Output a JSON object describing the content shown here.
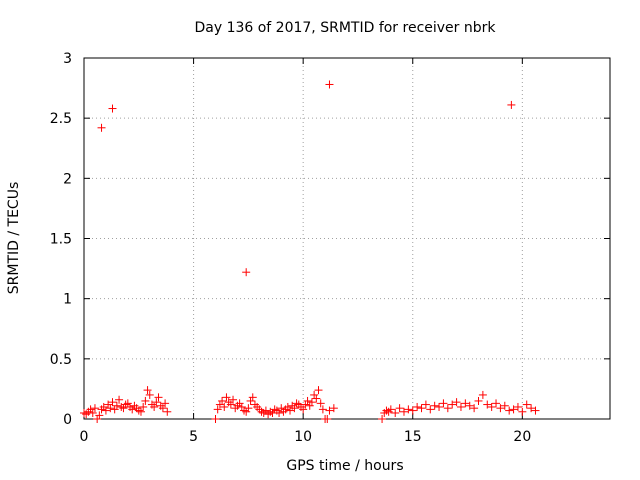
{
  "chart_data": {
    "type": "scatter",
    "title": "Day 136 of 2017, SRMTID for receiver nbrk",
    "xlabel": "GPS time / hours",
    "ylabel": "SRMTID / TECUs",
    "xlim": [
      0,
      24
    ],
    "ylim": [
      0,
      3
    ],
    "xticks": [
      0,
      5,
      10,
      15,
      20
    ],
    "xtick_labels": [
      "0",
      "5",
      "10",
      "15",
      "20"
    ],
    "yticks": [
      0,
      0.5,
      1,
      1.5,
      2,
      2.5,
      3
    ],
    "ytick_labels": [
      "0",
      "0.5",
      "1",
      "1.5",
      "2",
      "2.5",
      "3"
    ],
    "grid": true,
    "marker": "+",
    "color": "#ff0000",
    "series": [
      {
        "name": "SRMTID",
        "x": [
          0.0,
          0.1,
          0.2,
          0.3,
          0.4,
          0.5,
          0.6,
          0.7,
          0.8,
          0.9,
          1.0,
          1.1,
          1.2,
          1.3,
          1.4,
          1.5,
          1.6,
          1.7,
          1.8,
          1.9,
          2.0,
          2.1,
          2.2,
          2.3,
          2.4,
          2.5,
          2.6,
          2.7,
          2.8,
          2.9,
          3.0,
          3.1,
          3.2,
          3.3,
          3.4,
          3.5,
          3.6,
          3.7,
          3.8,
          0.8,
          1.3,
          6.0,
          6.1,
          6.2,
          6.3,
          6.4,
          6.5,
          6.6,
          6.7,
          6.8,
          6.9,
          7.0,
          7.1,
          7.2,
          7.3,
          7.4,
          7.5,
          7.6,
          7.7,
          7.8,
          7.9,
          8.0,
          8.1,
          8.2,
          8.3,
          8.4,
          8.5,
          8.6,
          8.7,
          8.8,
          8.9,
          9.0,
          9.1,
          9.2,
          9.3,
          9.4,
          9.5,
          9.6,
          9.7,
          9.8,
          9.9,
          10.0,
          10.1,
          10.2,
          10.3,
          10.4,
          10.5,
          10.6,
          10.7,
          10.8,
          10.9,
          11.0,
          11.1,
          11.2,
          11.4,
          7.4,
          11.2,
          13.6,
          13.7,
          13.8,
          13.9,
          14.0,
          14.2,
          14.4,
          14.6,
          14.8,
          15.0,
          15.2,
          15.4,
          15.6,
          15.8,
          16.0,
          16.2,
          16.4,
          16.6,
          16.8,
          17.0,
          17.2,
          17.4,
          17.6,
          17.8,
          18.0,
          18.2,
          18.4,
          18.6,
          18.8,
          19.0,
          19.2,
          19.4,
          19.6,
          19.8,
          20.0,
          20.2,
          20.4,
          20.6,
          19.5
        ],
        "y": [
          0.05,
          0.04,
          0.06,
          0.08,
          0.05,
          0.09,
          0.0,
          0.03,
          0.08,
          0.1,
          0.07,
          0.12,
          0.09,
          0.14,
          0.08,
          0.11,
          0.16,
          0.1,
          0.09,
          0.12,
          0.13,
          0.1,
          0.08,
          0.11,
          0.09,
          0.07,
          0.06,
          0.1,
          0.15,
          0.24,
          0.2,
          0.12,
          0.1,
          0.14,
          0.18,
          0.11,
          0.09,
          0.13,
          0.06,
          2.42,
          2.58,
          0.0,
          0.08,
          0.12,
          0.15,
          0.1,
          0.18,
          0.14,
          0.12,
          0.16,
          0.09,
          0.11,
          0.13,
          0.1,
          0.07,
          0.06,
          0.09,
          0.15,
          0.18,
          0.12,
          0.1,
          0.08,
          0.06,
          0.05,
          0.07,
          0.04,
          0.06,
          0.05,
          0.08,
          0.07,
          0.05,
          0.09,
          0.06,
          0.08,
          0.1,
          0.07,
          0.11,
          0.09,
          0.13,
          0.12,
          0.1,
          0.08,
          0.12,
          0.15,
          0.11,
          0.14,
          0.2,
          0.17,
          0.24,
          0.13,
          0.08,
          0.0,
          0.0,
          0.07,
          0.09,
          1.22,
          2.78,
          0.0,
          0.05,
          0.07,
          0.06,
          0.08,
          0.05,
          0.09,
          0.06,
          0.08,
          0.07,
          0.1,
          0.09,
          0.12,
          0.08,
          0.11,
          0.1,
          0.13,
          0.09,
          0.12,
          0.14,
          0.1,
          0.13,
          0.11,
          0.09,
          0.15,
          0.2,
          0.12,
          0.1,
          0.13,
          0.09,
          0.11,
          0.07,
          0.08,
          0.1,
          0.06,
          0.12,
          0.09,
          0.07,
          2.61
        ]
      }
    ]
  }
}
